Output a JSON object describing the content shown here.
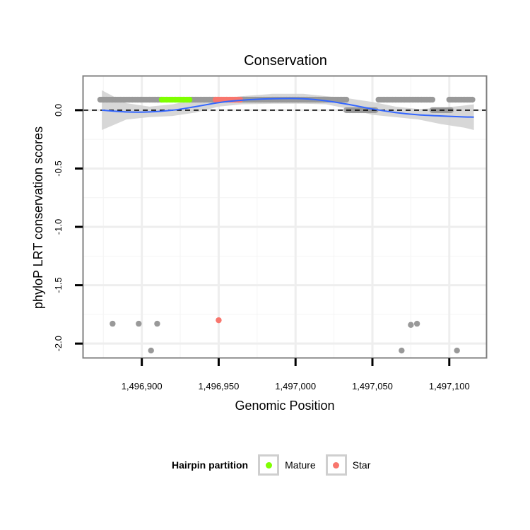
{
  "chart_data": {
    "type": "scatter",
    "title": "Conservation",
    "xlabel": "Genomic Position",
    "ylabel": "phyloP LRT conservation scores",
    "xlim": [
      1496862,
      1497124
    ],
    "ylim": [
      -2.12,
      0.29
    ],
    "x_ticks": [
      1496900,
      1496950,
      1497000,
      1497050,
      1497100
    ],
    "x_tick_labels": [
      "1,496,900",
      "1,496,950",
      "1,497,000",
      "1,497,050",
      "1,497,100"
    ],
    "y_ticks": [
      0.0,
      -0.5,
      -1.0,
      -1.5,
      -2.0
    ],
    "y_tick_labels": [
      "0.0",
      "-0.5",
      "-1.0",
      "-1.5",
      "-2.0"
    ],
    "reference_line": {
      "y": 0,
      "style": "dashed"
    },
    "grid": true,
    "legend": {
      "title": "Hairpin partition",
      "position": "bottom",
      "entries": [
        {
          "label": "Mature",
          "color": "#7FFF00"
        },
        {
          "label": "Star",
          "color": "#F8766D"
        }
      ]
    },
    "colors": {
      "other": "#999999",
      "mature": "#7FFF00",
      "star": "#F8766D",
      "smooth": "#3366FF",
      "band": "#d0d0d0"
    },
    "series": [
      {
        "name": "Other",
        "color": "#999999",
        "segments": [
          [
            1496873,
            1496913,
            0.09
          ],
          [
            1496931,
            1496948,
            0.09
          ],
          [
            1496964,
            1497033,
            0.09
          ],
          [
            1497054,
            1497089,
            0.09
          ],
          [
            1497100,
            1497115,
            0.09
          ]
        ],
        "band_segments": [
          [
            1497033,
            1497052,
            0.0
          ],
          [
            1497089,
            1497101,
            0.0
          ]
        ]
      },
      {
        "name": "Mature",
        "color": "#7FFF00",
        "segments": [
          [
            1496913,
            1496931,
            0.09
          ]
        ]
      },
      {
        "name": "Star",
        "color": "#F8766D",
        "segments": [
          [
            1496948,
            1496964,
            0.09
          ]
        ]
      },
      {
        "name": "Outliers",
        "color": "#999999",
        "points": [
          [
            1496881,
            -1.83
          ],
          [
            1496898,
            -1.83
          ],
          [
            1496910,
            -1.83
          ],
          [
            1496906,
            -2.06
          ],
          [
            1497069,
            -2.06
          ],
          [
            1497075,
            -1.84
          ],
          [
            1497079,
            -1.83
          ],
          [
            1497105,
            -2.06
          ]
        ]
      },
      {
        "name": "Star outlier",
        "color": "#F8766D",
        "points": [
          [
            1496950,
            -1.8
          ]
        ]
      }
    ],
    "smooth": {
      "x": [
        1496874,
        1496890,
        1496905,
        1496920,
        1496935,
        1496950,
        1496965,
        1496985,
        1497005,
        1497020,
        1497035,
        1497050,
        1497065,
        1497080,
        1497095,
        1497110,
        1497116
      ],
      "y": [
        0.0,
        -0.015,
        -0.015,
        0.0,
        0.03,
        0.065,
        0.085,
        0.098,
        0.098,
        0.08,
        0.048,
        0.01,
        -0.02,
        -0.04,
        -0.05,
        -0.058,
        -0.06
      ],
      "band_lo": [
        -0.17,
        -0.08,
        -0.06,
        -0.05,
        -0.02,
        0.03,
        0.05,
        0.055,
        0.055,
        0.05,
        0.01,
        -0.04,
        -0.06,
        -0.08,
        -0.12,
        -0.15,
        -0.17
      ],
      "band_hi": [
        0.17,
        0.06,
        0.03,
        0.05,
        0.09,
        0.1,
        0.12,
        0.14,
        0.14,
        0.12,
        0.1,
        0.07,
        0.03,
        0.01,
        0.02,
        0.04,
        0.05
      ]
    }
  }
}
